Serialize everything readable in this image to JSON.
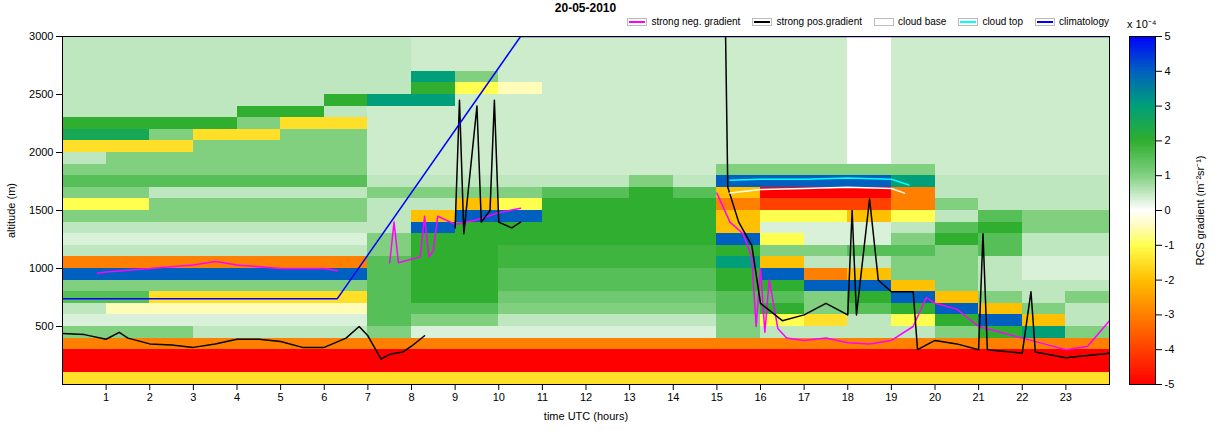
{
  "chart_data": {
    "type": "heatmap",
    "title": "20-05-2010",
    "x_label": "time UTC (hours)",
    "y_label": "altitude (m)",
    "xlim": [
      0,
      24
    ],
    "xticks": [
      1,
      2,
      3,
      4,
      5,
      6,
      7,
      8,
      9,
      10,
      11,
      12,
      13,
      14,
      15,
      16,
      17,
      18,
      19,
      20,
      21,
      22,
      23
    ],
    "ylim": [
      0,
      3000
    ],
    "yticks": [
      500,
      1000,
      1500,
      2000,
      2500,
      3000
    ],
    "legend": "top",
    "color_label": "RCS gradient (m⁻²sr⁻¹)",
    "color_unit": "x 10⁻⁴",
    "color_range": [
      -5,
      5
    ],
    "color_ticks": [
      -5,
      -4,
      -3,
      -2,
      -1,
      0,
      1,
      2,
      3,
      4,
      5
    ],
    "cells": {
      "x_edges": [
        0,
        1,
        2,
        3,
        4,
        5,
        6,
        7,
        8,
        9,
        10,
        11,
        12,
        13,
        14,
        15,
        16,
        17,
        18,
        19,
        20,
        21,
        22,
        23,
        24
      ],
      "y_edges": [
        0,
        100,
        200,
        300,
        400,
        500,
        600,
        700,
        800,
        900,
        1000,
        1100,
        1200,
        1300,
        1400,
        1500,
        1600,
        1700,
        1800,
        1900,
        2000,
        2100,
        2200,
        2300,
        2400,
        2500,
        2600,
        2700,
        2800,
        2900,
        3000
      ],
      "values": [
        [
          -1.5,
          -1.5,
          -1.5,
          -1.5,
          -1.5,
          -1.5,
          -1.5,
          -1.5,
          -1.5,
          -1.5,
          -1.5,
          -1.5,
          -1.5,
          -1.5,
          -1.5,
          -1.5,
          -1.5,
          -1.5,
          -1.5,
          -1.5,
          -1.5,
          -1.5,
          -1.5,
          -1.5
        ],
        [
          -5,
          -5,
          -5,
          -5,
          -5,
          -5,
          -5,
          -5,
          -5,
          -5,
          -5,
          -5,
          -5,
          -5,
          -5,
          -5,
          -5,
          -5,
          -5,
          -5,
          -5,
          -5,
          -5,
          -5
        ],
        [
          -5,
          -5,
          -5,
          -5,
          -5,
          -5,
          -5,
          -5,
          -5,
          -5,
          -5,
          -5,
          -5,
          -5,
          -5,
          -5,
          -5,
          -5,
          -5,
          -5,
          -5,
          -5,
          -5,
          -5
        ],
        [
          -3,
          -3,
          -3,
          -3,
          -3,
          -3,
          -3,
          -3,
          -3,
          -3,
          -3,
          -3,
          -3,
          -3,
          -3,
          -3,
          -3,
          -3,
          -3,
          -3,
          -3,
          -3,
          -3,
          -3
        ],
        [
          1,
          1,
          1,
          0.5,
          0.5,
          0.5,
          0.5,
          1,
          0.3,
          0.3,
          0.3,
          0.3,
          0.3,
          0.3,
          0.3,
          1,
          0.5,
          0.5,
          0.5,
          0.5,
          1,
          2,
          3,
          1
        ],
        [
          0.3,
          0.3,
          0.3,
          0.3,
          0.3,
          0.3,
          0.3,
          1.5,
          1,
          1,
          0.5,
          0.5,
          0.5,
          0.5,
          0.5,
          1,
          -1,
          -1.5,
          0.5,
          -1,
          2,
          4,
          -2,
          0.5
        ],
        [
          0.5,
          -0.5,
          -0.5,
          -0.5,
          -0.5,
          -0.5,
          -0.5,
          1.5,
          1.5,
          1.5,
          1,
          1,
          1,
          1,
          1,
          1.5,
          2,
          1,
          1.5,
          2,
          4,
          -2,
          1,
          0.5
        ],
        [
          1.5,
          1.5,
          -1.5,
          -1.5,
          -1.5,
          -1.5,
          -1.5,
          1.5,
          2,
          2,
          1.2,
          1.2,
          1.2,
          1.2,
          1.2,
          1.5,
          1.5,
          1,
          2,
          4,
          -2,
          1,
          0.5,
          1
        ],
        [
          1,
          1,
          1,
          1,
          1,
          1,
          1,
          1.5,
          2,
          2,
          1.5,
          1.5,
          1.5,
          1.5,
          1.5,
          2,
          2,
          4,
          4,
          -2,
          1,
          0.5,
          0.5,
          0.5
        ],
        [
          4,
          4,
          4,
          4,
          4,
          4,
          4,
          1.5,
          2,
          2,
          1.5,
          1.5,
          1.5,
          1.5,
          1.5,
          2,
          4,
          -3,
          -2,
          1,
          1,
          0.5,
          0.3,
          0.3
        ],
        [
          -3,
          -3,
          -3,
          -3,
          -3,
          -3,
          -3,
          1.5,
          2,
          2,
          1.8,
          1.8,
          1.8,
          1.8,
          1.8,
          3,
          -2,
          0.5,
          0.5,
          1,
          1,
          0.5,
          0.3,
          0.3
        ],
        [
          0.5,
          0.5,
          0.5,
          0.5,
          0.5,
          0.5,
          0.5,
          1,
          2,
          2,
          1.8,
          1.8,
          1.8,
          1.8,
          1.8,
          2,
          1,
          1,
          1.5,
          1.5,
          1,
          1.5,
          0.5,
          0.5
        ],
        [
          0.3,
          0.3,
          0.3,
          0.3,
          0.3,
          0.3,
          0.3,
          1,
          2,
          2,
          2,
          2,
          2,
          2,
          2,
          4,
          -1,
          0.3,
          0.3,
          1,
          2,
          1.5,
          0.5,
          0.5
        ],
        [
          0.5,
          0.5,
          0.5,
          0.5,
          0.5,
          0.5,
          0.5,
          0.5,
          4,
          2,
          2,
          2,
          2,
          2,
          2,
          -2,
          0.3,
          0.3,
          0.3,
          0.5,
          1.5,
          2,
          1,
          1
        ],
        [
          1,
          1,
          1,
          1,
          1,
          1,
          1,
          0.5,
          -2,
          4,
          4,
          2,
          2,
          2,
          2,
          -2,
          -1,
          -1,
          -2,
          -1,
          0.5,
          1.5,
          1,
          1
        ],
        [
          -1,
          -1,
          1,
          1,
          1,
          1,
          1,
          0.5,
          0.5,
          -2,
          -1,
          2,
          2,
          2,
          2,
          -3,
          -4,
          -4,
          -4,
          -3,
          1,
          0.5,
          0.5,
          0.5
        ],
        [
          1,
          1,
          0.5,
          0.5,
          0.5,
          0.5,
          0.5,
          1,
          1,
          1,
          1,
          1.5,
          1.5,
          2,
          1.5,
          -2,
          -5,
          -5,
          -5,
          -3,
          0.5,
          0.5,
          0.5,
          0.5
        ],
        [
          1.5,
          1.5,
          1.5,
          1.5,
          1.5,
          1.5,
          1.5,
          0.5,
          0.5,
          0.5,
          0.5,
          0.5,
          0.5,
          1,
          0.5,
          4,
          4,
          4,
          4,
          3,
          0.5,
          0.5,
          0.5,
          0.5
        ],
        [
          1,
          1,
          1,
          1,
          1,
          1,
          1,
          0.4,
          0.4,
          0.4,
          0.4,
          0.4,
          0.4,
          0.4,
          0.4,
          1,
          1,
          1,
          1,
          1,
          0.4,
          0.4,
          0.4,
          0.4
        ],
        [
          0.5,
          1,
          1,
          1,
          1,
          1,
          1,
          0.4,
          0.4,
          0.4,
          0.4,
          0.4,
          0.4,
          0.4,
          0.4,
          0.4,
          0.4,
          0.4,
          0,
          0.4,
          0.4,
          0.4,
          0.4,
          0.4
        ],
        [
          -1.5,
          -1.5,
          -1.5,
          1,
          1,
          1,
          1,
          0.4,
          0.4,
          0.4,
          0.4,
          0.4,
          0.4,
          0.4,
          0.4,
          0.4,
          0.4,
          0.4,
          0,
          0.4,
          0.4,
          0.4,
          0.4,
          0.4
        ],
        [
          2.5,
          2.5,
          1,
          -1.5,
          -1.5,
          1,
          1,
          0.4,
          0.4,
          0.4,
          0.4,
          0.4,
          0.4,
          0.4,
          0.4,
          0.4,
          0.4,
          0.4,
          0,
          0.4,
          0.4,
          0.4,
          0.4,
          0.4
        ],
        [
          2,
          2,
          2,
          2,
          1,
          -1.5,
          -1.5,
          0.4,
          0.4,
          0.4,
          0.4,
          0.4,
          0.4,
          0.4,
          0.4,
          0.4,
          0.4,
          0.4,
          0,
          0.4,
          0.4,
          0.4,
          0.4,
          0.4
        ],
        [
          0.5,
          0.5,
          0.5,
          0.5,
          2,
          2,
          0.5,
          0.4,
          0.4,
          0.4,
          0.4,
          0.4,
          0.4,
          0.4,
          0.4,
          0.4,
          0.4,
          0.4,
          0,
          0.4,
          0.4,
          0.4,
          0.4,
          0.4
        ],
        [
          0.5,
          0.5,
          0.5,
          0.5,
          0.5,
          0.5,
          2,
          3,
          3,
          0.4,
          0.4,
          0.4,
          0.4,
          0.4,
          0.4,
          0.4,
          0.4,
          0.4,
          0,
          0.4,
          0.4,
          0.4,
          0.4,
          0.4
        ],
        [
          0.5,
          0.5,
          0.5,
          0.5,
          0.5,
          0.5,
          0.5,
          0.5,
          2,
          -1,
          -0.5,
          0.4,
          0.4,
          0.4,
          0.4,
          0.4,
          0.4,
          0.4,
          0,
          0.4,
          0.4,
          0.4,
          0.4,
          0.4
        ],
        [
          0.5,
          0.5,
          0.5,
          0.5,
          0.5,
          0.5,
          0.5,
          0.5,
          3,
          1,
          0.4,
          0.4,
          0.4,
          0.4,
          0.4,
          0.4,
          0.4,
          0.4,
          0,
          0.4,
          0.4,
          0.4,
          0.4,
          0.4
        ],
        [
          0.5,
          0.5,
          0.5,
          0.5,
          0.5,
          0.5,
          0.5,
          0.5,
          0.4,
          0.4,
          0.4,
          0.4,
          0.4,
          0.4,
          0.4,
          0.4,
          0.4,
          0.4,
          0,
          0.4,
          0.4,
          0.4,
          0.4,
          0.4
        ],
        [
          0.5,
          0.5,
          0.5,
          0.5,
          0.5,
          0.5,
          0.5,
          0.5,
          0.4,
          0.4,
          0.4,
          0.4,
          0.4,
          0.4,
          0.4,
          0.4,
          0.4,
          0.4,
          0,
          0.4,
          0.4,
          0.4,
          0.4,
          0.4
        ],
        [
          0.5,
          0.5,
          0.5,
          0.5,
          0.5,
          0.5,
          0.5,
          0.5,
          0.4,
          0.4,
          0.4,
          0.4,
          0.4,
          0.4,
          0.4,
          0.4,
          0.4,
          0.4,
          0,
          0.4,
          0.4,
          0.4,
          0.4,
          0.4
        ]
      ]
    },
    "series": [
      {
        "name": "strong neg. gradient",
        "color": "#ff00ff",
        "type": "line",
        "x": [
          0.8,
          1,
          2,
          3,
          3.5,
          4,
          5,
          6,
          6.3,
          6.35,
          7.5,
          7.6,
          7.7,
          8.2,
          8.3,
          8.4,
          8.5,
          8.6,
          9,
          9.5,
          10,
          10.5,
          10.6,
          15,
          15.3,
          15.6,
          15.8,
          15.9,
          16,
          16.1,
          16.2,
          16.4,
          16.6,
          17,
          17.5,
          18,
          18.5,
          19,
          19.5,
          19.8,
          20,
          20.5,
          21,
          21.5,
          22,
          22.5,
          23,
          23.5,
          24
        ],
        "values": [
          960,
          970,
          1000,
          1030,
          1060,
          1030,
          1000,
          1000,
          980,
          null,
          1050,
          1400,
          1050,
          1100,
          1450,
          1100,
          1150,
          1450,
          1380,
          1420,
          1480,
          1520,
          null,
          1650,
          1400,
          1300,
          1100,
          500,
          1000,
          450,
          900,
          480,
          400,
          380,
          400,
          360,
          350,
          380,
          500,
          750,
          700,
          650,
          500,
          450,
          400,
          350,
          300,
          330,
          550
        ]
      },
      {
        "name": "strong pos.gradient",
        "color": "#000000",
        "type": "line",
        "x": [
          0,
          0.5,
          1,
          1.3,
          1.5,
          2,
          2.5,
          3,
          3.5,
          4,
          4.5,
          5,
          5.5,
          6,
          6.5,
          6.8,
          7,
          7.3,
          7.5,
          7.8,
          8,
          8.3,
          8.4,
          9,
          9.1,
          9.2,
          9.5,
          9.6,
          9.8,
          9.9,
          10,
          10.3,
          10.5,
          10.6,
          15.2,
          15.25,
          15.5,
          15.8,
          16,
          16.5,
          17,
          17.5,
          18,
          18.1,
          18.2,
          18.5,
          18.7,
          19,
          19.5,
          19.6,
          20,
          20.5,
          21,
          21.1,
          21.2,
          22,
          22.2,
          22.3,
          23,
          23.5,
          24
        ],
        "values": [
          440,
          430,
          390,
          450,
          400,
          350,
          340,
          320,
          350,
          390,
          390,
          370,
          320,
          320,
          400,
          500,
          420,
          220,
          260,
          280,
          330,
          420,
          null,
          1350,
          2450,
          1300,
          2400,
          1400,
          1500,
          2450,
          1400,
          1350,
          1400,
          null,
          3000,
          1700,
          1400,
          1200,
          700,
          550,
          600,
          700,
          600,
          1500,
          600,
          1600,
          900,
          800,
          800,
          300,
          380,
          350,
          300,
          1300,
          300,
          270,
          800,
          280,
          230,
          250,
          270
        ]
      },
      {
        "name": "cloud base",
        "color": "#ffffff",
        "type": "line",
        "x": [
          15.3,
          16,
          17,
          18,
          19,
          19.3
        ],
        "values": [
          1650,
          1680,
          1690,
          1700,
          1690,
          1650
        ]
      },
      {
        "name": "cloud top",
        "color": "#00ffff",
        "type": "line",
        "x": [
          15.3,
          16,
          17,
          18,
          19,
          19.4
        ],
        "values": [
          1760,
          1770,
          1770,
          1780,
          1770,
          1720
        ]
      },
      {
        "name": "climatology",
        "color": "#0000ff",
        "type": "line",
        "x": [
          0,
          6.3,
          10.5,
          24
        ],
        "values": [
          740,
          740,
          3000,
          3000
        ]
      }
    ]
  }
}
